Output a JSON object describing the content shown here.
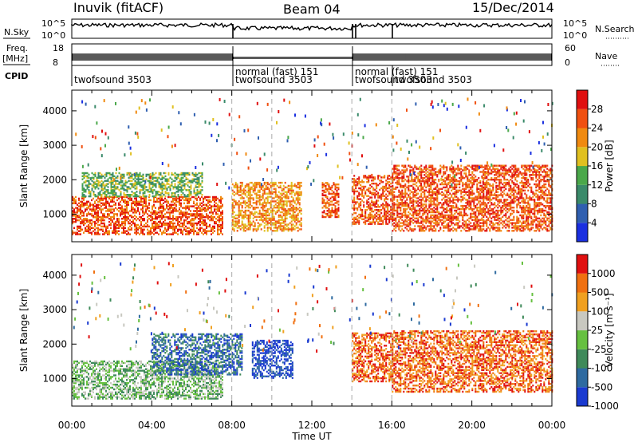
{
  "header": {
    "station": "Inuvik (fitACF)",
    "beam": "Beam 04",
    "date": "15/Dec/2014"
  },
  "strip_labels": {
    "nsky": "N.Sky",
    "nsky_ticks": [
      "10^5",
      "10^0"
    ],
    "nsearch": "N.Search",
    "nsearch_ticks": [
      "10^5",
      "10^0"
    ],
    "freq": "Freq.",
    "freq_unit": "[MHz]",
    "freq_ticks": [
      "18",
      "8"
    ],
    "nave": "Nave",
    "nave_ticks": [
      "60",
      "0"
    ],
    "cpid": "CPID"
  },
  "cpid_segments": [
    {
      "start_h": 0,
      "labels": [
        "twofsound 3503"
      ]
    },
    {
      "start_h": 8,
      "labels": [
        "normal (fast) 151",
        "twofsound 3503"
      ]
    },
    {
      "start_h": 14,
      "labels": [
        "normal (fast) 151",
        "twofsound 3503"
      ]
    },
    {
      "start_h": 16,
      "labels": [
        "twofsound 3503"
      ]
    }
  ],
  "chart_data": [
    {
      "type": "heatmap",
      "panel": "power",
      "ylabel": "Slant Range [km]",
      "xlabel": "Time UT",
      "xlim": [
        0,
        24
      ],
      "ylim": [
        200,
        4600
      ],
      "yticks": [
        1000,
        2000,
        3000,
        4000
      ],
      "xticks": [
        "00:00",
        "04:00",
        "08:00",
        "12:00",
        "16:00",
        "20:00",
        "00:00"
      ],
      "colorbar": {
        "label": "Power [dB]",
        "tick_labels": [
          "4",
          "8",
          "12",
          "16",
          "20",
          "24",
          "28"
        ],
        "colors": [
          "#1a2fe0",
          "#2f5fb0",
          "#3a8a6a",
          "#4aa84a",
          "#e0c020",
          "#f08a10",
          "#f05010",
          "#e01010"
        ]
      },
      "bands": [
        {
          "t0": 0.0,
          "t1": 7.5,
          "r0": 400,
          "r1": 1500,
          "level": 6
        },
        {
          "t0": 0.5,
          "t1": 6.5,
          "r0": 1500,
          "r1": 2200,
          "level": 3
        },
        {
          "t0": 8.0,
          "t1": 11.5,
          "r0": 500,
          "r1": 1900,
          "level": 5
        },
        {
          "t0": 12.5,
          "t1": 13.3,
          "r0": 900,
          "r1": 1900,
          "level": 6
        },
        {
          "t0": 14.0,
          "t1": 16.0,
          "r0": 700,
          "r1": 2100,
          "level": 6
        },
        {
          "t0": 16.0,
          "t1": 24.0,
          "r0": 500,
          "r1": 2400,
          "level": 6
        }
      ]
    },
    {
      "type": "heatmap",
      "panel": "velocity",
      "ylabel": "Slant Range [km]",
      "xlabel": "Time UT",
      "xlim": [
        0,
        24
      ],
      "ylim": [
        200,
        4600
      ],
      "yticks": [
        1000,
        2000,
        3000,
        4000
      ],
      "xticks": [
        "00:00",
        "04:00",
        "08:00",
        "12:00",
        "16:00",
        "20:00",
        "00:00"
      ],
      "colorbar": {
        "label": "Velocity [m s⁻¹]",
        "tick_labels": [
          "1000",
          "500",
          "100",
          "25",
          "-25",
          "-100",
          "-500",
          "-1000"
        ],
        "colors": [
          "#1a3ad0",
          "#2e6aa0",
          "#3f8a5a",
          "#66c040",
          "#c8c8c0",
          "#f0a020",
          "#f07010",
          "#e01010"
        ]
      },
      "bands": [
        {
          "t0": 0.0,
          "t1": 7.5,
          "r0": 400,
          "r1": 1500,
          "level": 3
        },
        {
          "t0": 4.0,
          "t1": 8.5,
          "r0": 1100,
          "r1": 2300,
          "level": 1
        },
        {
          "t0": 9.0,
          "t1": 11.0,
          "r0": 1000,
          "r1": 2100,
          "level": 0
        },
        {
          "t0": 14.0,
          "t1": 16.0,
          "r0": 900,
          "r1": 2300,
          "level": 6
        },
        {
          "t0": 16.0,
          "t1": 24.0,
          "r0": 600,
          "r1": 2400,
          "level": 6
        }
      ]
    }
  ]
}
